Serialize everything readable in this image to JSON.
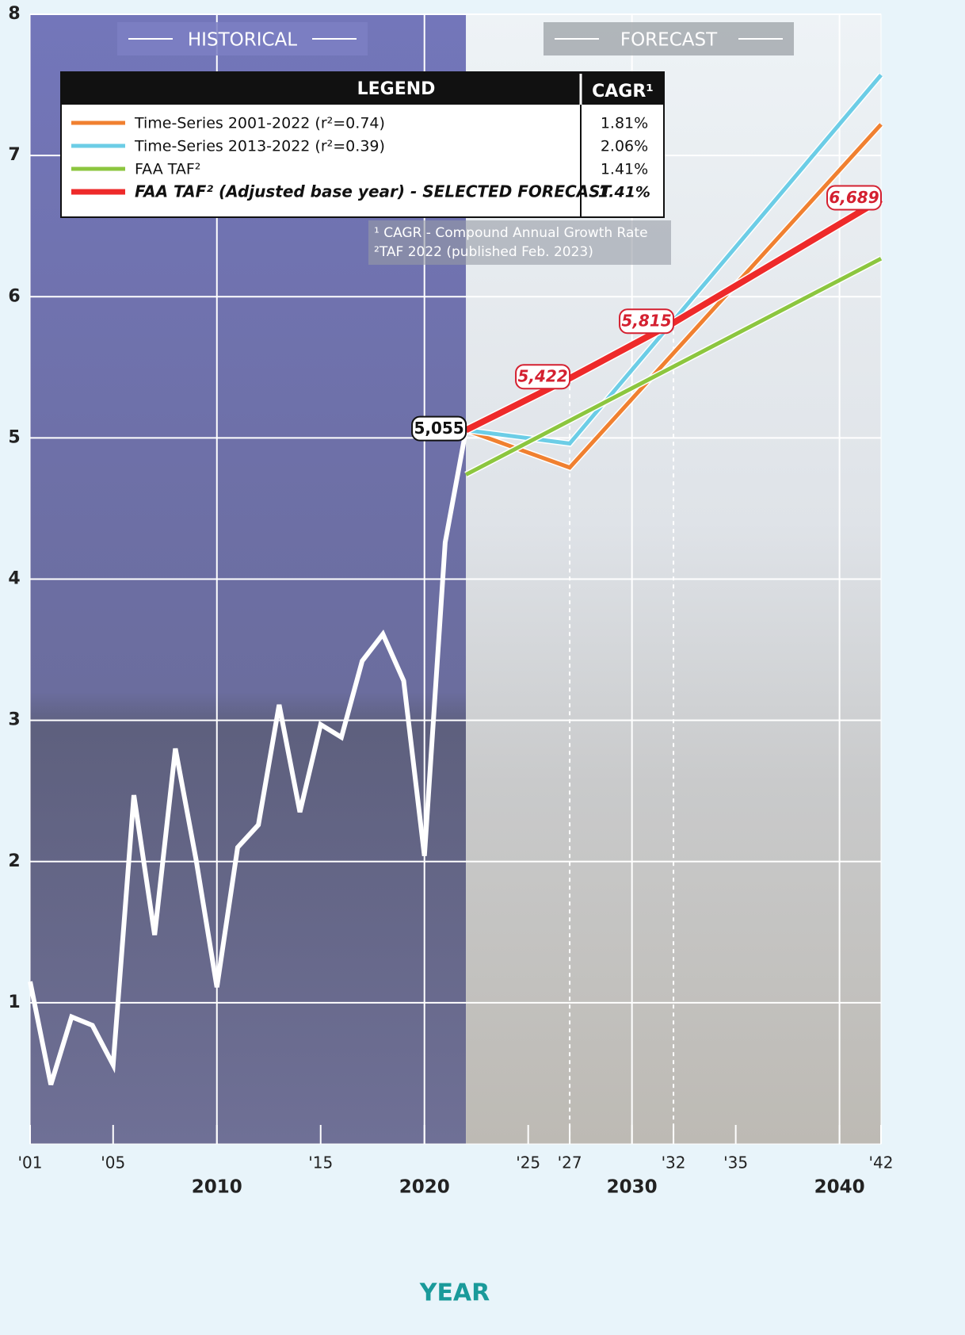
{
  "chart_data": {
    "type": "line",
    "x_label": "YEAR",
    "xlim": [
      2001,
      2042
    ],
    "ylim": [
      0,
      8
    ],
    "yticks": [
      1,
      2,
      3,
      4,
      5,
      6,
      7,
      8
    ],
    "xticks": [
      {
        "value": 2001,
        "label": "'01"
      },
      {
        "value": 2005,
        "label": "'05"
      },
      2010,
      {
        "value": 2015,
        "label": "'15"
      },
      2020,
      {
        "value": 2025,
        "label": "'25"
      },
      {
        "value": 2027,
        "label": "'27"
      },
      2030,
      {
        "value": 2032,
        "label": "'32"
      },
      {
        "value": 2035,
        "label": "'35"
      },
      2040,
      {
        "value": 2042,
        "label": "'42"
      }
    ],
    "grid": true,
    "period_labels": {
      "historical": "HISTORICAL",
      "forecast": "FORECAST",
      "split": 2022
    },
    "legend": {
      "title": "LEGEND",
      "cagr_header": "CAGR¹"
    },
    "footnotes": [
      "¹ CAGR - Compound Annual Growth Rate",
      "²TAF 2022 (published Feb. 2023)"
    ],
    "series": [
      {
        "color": "#ffffff",
        "x": [
          2001,
          2002,
          2003,
          2004,
          2005,
          2006,
          2007,
          2008,
          2009,
          2010,
          2011,
          2012,
          2013,
          2014,
          2015,
          2016,
          2017,
          2018,
          2019,
          2020,
          2021,
          2022
        ],
        "values": [
          1.15,
          0.42,
          0.9,
          0.84,
          0.56,
          2.47,
          1.48,
          2.8,
          2.01,
          1.11,
          2.1,
          2.26,
          3.11,
          2.35,
          2.97,
          2.88,
          3.42,
          3.61,
          3.28,
          2.04,
          4.26,
          5.055
        ],
        "value_labels": [
          null,
          null,
          null,
          null,
          null,
          null,
          null,
          null,
          null,
          null,
          null,
          null,
          null,
          null,
          null,
          null,
          null,
          null,
          null,
          null,
          null,
          "5,055"
        ]
      },
      {
        "name": "Time-Series 2001-2022 (r²=0.74)",
        "cagr": "1.81%",
        "color": "#f08030",
        "x": [
          2022,
          2027,
          2042
        ],
        "values": [
          5.055,
          4.79,
          7.22
        ]
      },
      {
        "name": "Time-Series 2013-2022 (r²=0.39)",
        "cagr": "2.06%",
        "color": "#6ccde6",
        "x": [
          2022,
          2027,
          2042
        ],
        "values": [
          5.055,
          4.96,
          7.57
        ]
      },
      {
        "name": "FAA TAF²",
        "cagr": "1.41%",
        "color": "#8cc63f",
        "x": [
          2022,
          2042
        ],
        "values": [
          4.74,
          6.27
        ]
      },
      {
        "name": "FAA TAF² (Adjusted base year) - SELECTED FORECAST",
        "cagr": "1.41%",
        "color": "#ee2a2a",
        "selected": true,
        "x": [
          2022,
          2027,
          2032,
          2042
        ],
        "values": [
          5.055,
          5.422,
          5.815,
          6.689
        ],
        "value_labels": [
          null,
          "5,422",
          "5,815",
          "6,689"
        ]
      }
    ]
  }
}
